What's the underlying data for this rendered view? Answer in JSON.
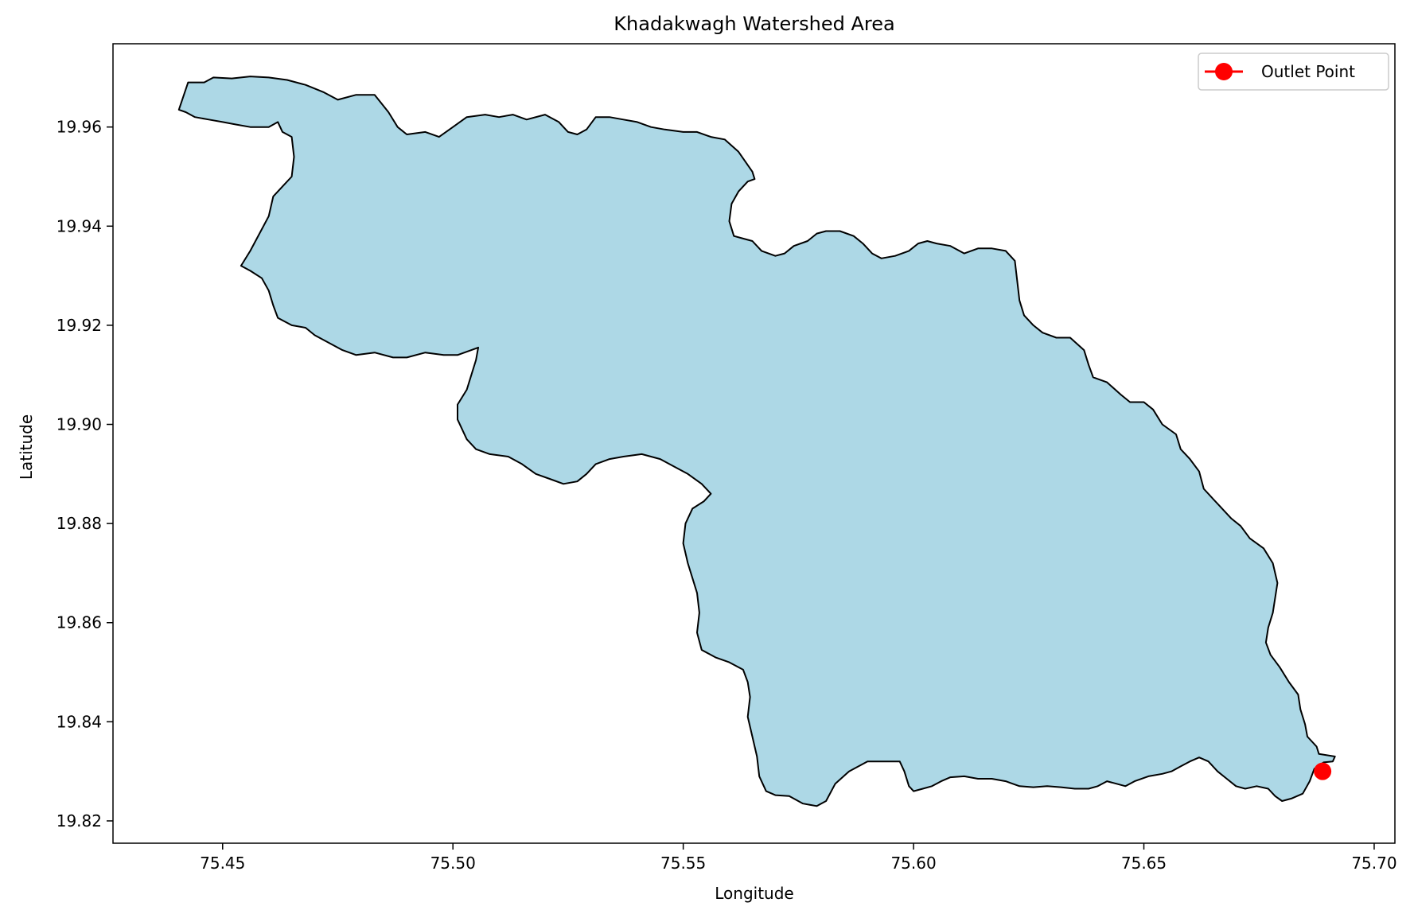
{
  "chart_data": {
    "type": "map",
    "title": "Khadakwagh Watershed Area",
    "xlabel": "Longitude",
    "ylabel": "Latitude",
    "xlim": [
      75.4262,
      75.7045
    ],
    "ylim": [
      19.8155,
      19.9768
    ],
    "x_ticks": [
      75.45,
      75.5,
      75.55,
      75.6,
      75.65,
      75.7
    ],
    "x_tick_labels": [
      "75.45",
      "75.50",
      "75.55",
      "75.60",
      "75.65",
      "75.70"
    ],
    "y_ticks": [
      19.82,
      19.84,
      19.86,
      19.88,
      19.9,
      19.92,
      19.94,
      19.96
    ],
    "y_tick_labels": [
      "19.82",
      "19.84",
      "19.86",
      "19.88",
      "19.90",
      "19.92",
      "19.94",
      "19.96"
    ],
    "grid": false,
    "legend_position": "top-right",
    "watershed": {
      "fill_color": "#add8e6",
      "edge_color": "#000000",
      "boundary": [
        [
          75.4405,
          19.9635
        ],
        [
          75.4425,
          19.969
        ],
        [
          75.446,
          19.969
        ],
        [
          75.448,
          19.97
        ],
        [
          75.452,
          19.9698
        ],
        [
          75.456,
          19.9702
        ],
        [
          75.46,
          19.97
        ],
        [
          75.464,
          19.9695
        ],
        [
          75.468,
          19.9685
        ],
        [
          75.472,
          19.967
        ],
        [
          75.475,
          19.9655
        ],
        [
          75.479,
          19.9665
        ],
        [
          75.483,
          19.9665
        ],
        [
          75.486,
          19.963
        ],
        [
          75.488,
          19.96
        ],
        [
          75.49,
          19.9585
        ],
        [
          75.494,
          19.959
        ],
        [
          75.497,
          19.958
        ],
        [
          75.5,
          19.96
        ],
        [
          75.503,
          19.962
        ],
        [
          75.507,
          19.9625
        ],
        [
          75.51,
          19.962
        ],
        [
          75.513,
          19.9625
        ],
        [
          75.516,
          19.9615
        ],
        [
          75.52,
          19.9625
        ],
        [
          75.523,
          19.961
        ],
        [
          75.525,
          19.959
        ],
        [
          75.527,
          19.9585
        ],
        [
          75.529,
          19.9595
        ],
        [
          75.531,
          19.962
        ],
        [
          75.534,
          19.962
        ],
        [
          75.537,
          19.9615
        ],
        [
          75.54,
          19.961
        ],
        [
          75.543,
          19.96
        ],
        [
          75.546,
          19.9595
        ],
        [
          75.55,
          19.959
        ],
        [
          75.553,
          19.959
        ],
        [
          75.556,
          19.958
        ],
        [
          75.559,
          19.9575
        ],
        [
          75.562,
          19.955
        ],
        [
          75.565,
          19.951
        ],
        [
          75.5655,
          19.9495
        ],
        [
          75.564,
          19.949
        ],
        [
          75.562,
          19.947
        ],
        [
          75.5605,
          19.9445
        ],
        [
          75.56,
          19.941
        ],
        [
          75.561,
          19.938
        ],
        [
          75.563,
          19.9375
        ],
        [
          75.565,
          19.937
        ],
        [
          75.567,
          19.935
        ],
        [
          75.57,
          19.934
        ],
        [
          75.572,
          19.9345
        ],
        [
          75.574,
          19.936
        ],
        [
          75.577,
          19.937
        ],
        [
          75.579,
          19.9385
        ],
        [
          75.581,
          19.939
        ],
        [
          75.584,
          19.939
        ],
        [
          75.587,
          19.938
        ],
        [
          75.589,
          19.9365
        ],
        [
          75.591,
          19.9345
        ],
        [
          75.593,
          19.9335
        ],
        [
          75.596,
          19.934
        ],
        [
          75.599,
          19.935
        ],
        [
          75.601,
          19.9365
        ],
        [
          75.603,
          19.937
        ],
        [
          75.605,
          19.9365
        ],
        [
          75.608,
          19.936
        ],
        [
          75.611,
          19.9345
        ],
        [
          75.614,
          19.9355
        ],
        [
          75.617,
          19.9355
        ],
        [
          75.62,
          19.935
        ],
        [
          75.622,
          19.933
        ],
        [
          75.6225,
          19.929
        ],
        [
          75.623,
          19.925
        ],
        [
          75.624,
          19.922
        ],
        [
          75.626,
          19.92
        ],
        [
          75.628,
          19.9185
        ],
        [
          75.631,
          19.9175
        ],
        [
          75.634,
          19.9175
        ],
        [
          75.637,
          19.915
        ],
        [
          75.638,
          19.912
        ],
        [
          75.639,
          19.9095
        ],
        [
          75.642,
          19.9085
        ],
        [
          75.645,
          19.906
        ],
        [
          75.647,
          19.9045
        ],
        [
          75.65,
          19.9045
        ],
        [
          75.652,
          19.903
        ],
        [
          75.654,
          19.9
        ],
        [
          75.657,
          19.898
        ],
        [
          75.658,
          19.895
        ],
        [
          75.66,
          19.893
        ],
        [
          75.662,
          19.8905
        ],
        [
          75.663,
          19.887
        ],
        [
          75.665,
          19.885
        ],
        [
          75.667,
          19.883
        ],
        [
          75.669,
          19.881
        ],
        [
          75.671,
          19.8795
        ],
        [
          75.673,
          19.877
        ],
        [
          75.676,
          19.875
        ],
        [
          75.678,
          19.872
        ],
        [
          75.679,
          19.868
        ],
        [
          75.6785,
          19.865
        ],
        [
          75.678,
          19.862
        ],
        [
          75.677,
          19.859
        ],
        [
          75.6765,
          19.856
        ],
        [
          75.6775,
          19.8535
        ],
        [
          75.6795,
          19.851
        ],
        [
          75.6815,
          19.848
        ],
        [
          75.6835,
          19.8455
        ],
        [
          75.684,
          19.8425
        ],
        [
          75.685,
          19.8395
        ],
        [
          75.6855,
          19.837
        ],
        [
          75.6875,
          19.835
        ],
        [
          75.688,
          19.8335
        ],
        [
          75.6915,
          19.833
        ],
        [
          75.691,
          19.832
        ],
        [
          75.689,
          19.8318
        ],
        [
          75.687,
          19.8305
        ],
        [
          75.686,
          19.828
        ],
        [
          75.6845,
          19.8255
        ],
        [
          75.682,
          19.8245
        ],
        [
          75.68,
          19.824
        ],
        [
          75.6785,
          19.825
        ],
        [
          75.677,
          19.8265
        ],
        [
          75.6745,
          19.827
        ],
        [
          75.672,
          19.8265
        ],
        [
          75.67,
          19.827
        ],
        [
          75.668,
          19.8285
        ],
        [
          75.666,
          19.83
        ],
        [
          75.664,
          19.832
        ],
        [
          75.662,
          19.8328
        ],
        [
          75.66,
          19.832
        ],
        [
          75.658,
          19.831
        ],
        [
          75.656,
          19.83
        ],
        [
          75.654,
          19.8295
        ],
        [
          75.651,
          19.829
        ],
        [
          75.648,
          19.828
        ],
        [
          75.646,
          19.827
        ],
        [
          75.644,
          19.8275
        ],
        [
          75.642,
          19.828
        ],
        [
          75.64,
          19.827
        ],
        [
          75.638,
          19.8265
        ],
        [
          75.635,
          19.8265
        ],
        [
          75.632,
          19.8268
        ],
        [
          75.629,
          19.827
        ],
        [
          75.626,
          19.8268
        ],
        [
          75.623,
          19.827
        ],
        [
          75.62,
          19.828
        ],
        [
          75.617,
          19.8285
        ],
        [
          75.614,
          19.8285
        ],
        [
          75.611,
          19.829
        ],
        [
          75.608,
          19.8288
        ],
        [
          75.606,
          19.828
        ],
        [
          75.604,
          19.827
        ],
        [
          75.602,
          19.8265
        ],
        [
          75.6,
          19.826
        ],
        [
          75.599,
          19.827
        ],
        [
          75.598,
          19.83
        ],
        [
          75.597,
          19.832
        ],
        [
          75.594,
          19.832
        ],
        [
          75.59,
          19.832
        ],
        [
          75.586,
          19.83
        ],
        [
          75.583,
          19.8275
        ],
        [
          75.581,
          19.824
        ],
        [
          75.579,
          19.823
        ],
        [
          75.576,
          19.8235
        ],
        [
          75.573,
          19.825
        ],
        [
          75.57,
          19.8252
        ],
        [
          75.568,
          19.826
        ],
        [
          75.5665,
          19.829
        ],
        [
          75.566,
          19.833
        ],
        [
          75.565,
          19.837
        ],
        [
          75.564,
          19.841
        ],
        [
          75.5645,
          19.845
        ],
        [
          75.564,
          19.848
        ],
        [
          75.563,
          19.8505
        ],
        [
          75.56,
          19.852
        ],
        [
          75.557,
          19.853
        ],
        [
          75.554,
          19.8545
        ],
        [
          75.553,
          19.858
        ],
        [
          75.5535,
          19.862
        ],
        [
          75.553,
          19.866
        ],
        [
          75.552,
          19.869
        ],
        [
          75.551,
          19.872
        ],
        [
          75.55,
          19.876
        ],
        [
          75.5505,
          19.88
        ],
        [
          75.552,
          19.883
        ],
        [
          75.5545,
          19.8845
        ],
        [
          75.556,
          19.886
        ],
        [
          75.554,
          19.888
        ],
        [
          75.551,
          19.89
        ],
        [
          75.548,
          19.8915
        ],
        [
          75.545,
          19.893
        ],
        [
          75.541,
          19.894
        ],
        [
          75.537,
          19.8935
        ],
        [
          75.534,
          19.893
        ],
        [
          75.531,
          19.892
        ],
        [
          75.529,
          19.89
        ],
        [
          75.527,
          19.8885
        ],
        [
          75.524,
          19.888
        ],
        [
          75.521,
          19.889
        ],
        [
          75.518,
          19.89
        ],
        [
          75.515,
          19.892
        ],
        [
          75.512,
          19.8935
        ],
        [
          75.508,
          19.894
        ],
        [
          75.505,
          19.895
        ],
        [
          75.503,
          19.897
        ],
        [
          75.501,
          19.901
        ],
        [
          75.501,
          19.904
        ],
        [
          75.503,
          19.907
        ],
        [
          75.504,
          19.91
        ],
        [
          75.505,
          19.913
        ],
        [
          75.5055,
          19.9155
        ],
        [
          75.504,
          19.915
        ],
        [
          75.501,
          19.914
        ],
        [
          75.498,
          19.914
        ],
        [
          75.494,
          19.9145
        ],
        [
          75.49,
          19.9135
        ],
        [
          75.487,
          19.9135
        ],
        [
          75.483,
          19.9145
        ],
        [
          75.479,
          19.914
        ],
        [
          75.476,
          19.915
        ],
        [
          75.473,
          19.9165
        ],
        [
          75.47,
          19.918
        ],
        [
          75.468,
          19.9195
        ],
        [
          75.465,
          19.92
        ],
        [
          75.462,
          19.9215
        ],
        [
          75.461,
          19.924
        ],
        [
          75.46,
          19.927
        ],
        [
          75.4585,
          19.9295
        ],
        [
          75.456,
          19.931
        ],
        [
          75.454,
          19.932
        ],
        [
          75.456,
          19.935
        ],
        [
          75.458,
          19.9385
        ],
        [
          75.46,
          19.942
        ],
        [
          75.461,
          19.946
        ],
        [
          75.463,
          19.948
        ],
        [
          75.465,
          19.95
        ],
        [
          75.4655,
          19.954
        ],
        [
          75.465,
          19.958
        ],
        [
          75.463,
          19.959
        ],
        [
          75.462,
          19.961
        ],
        [
          75.46,
          19.96
        ],
        [
          75.456,
          19.96
        ],
        [
          75.453,
          19.9605
        ],
        [
          75.45,
          19.961
        ],
        [
          75.447,
          19.9615
        ],
        [
          75.444,
          19.962
        ],
        [
          75.442,
          19.963
        ],
        [
          75.4405,
          19.9635
        ]
      ]
    },
    "outlet_point": {
      "legend_label": "Outlet Point",
      "x": 75.6888,
      "y": 19.83,
      "color": "#ff0000"
    }
  }
}
